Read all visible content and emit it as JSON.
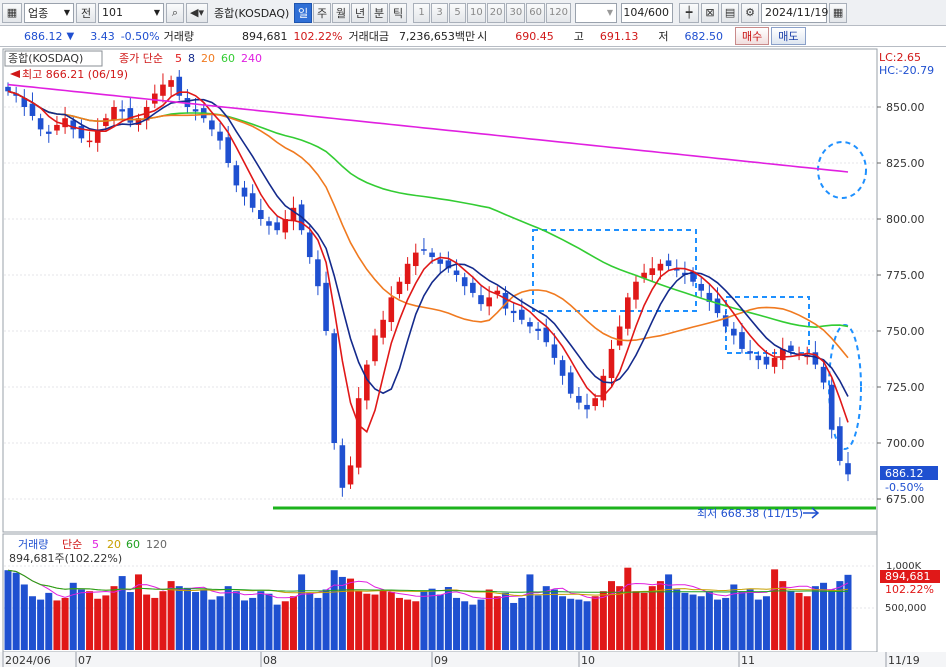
{
  "toolbar": {
    "market_select": "업종",
    "market_btn": "전",
    "code": "101",
    "name": "종합(KOSDAQ)",
    "periods": [
      "일",
      "주",
      "월",
      "년",
      "분",
      "틱"
    ],
    "numbers": [
      "1",
      "3",
      "5",
      "10",
      "20",
      "30",
      "60",
      "120"
    ],
    "count": "104/600",
    "date": "2024/11/19",
    "icons": [
      "search-icon",
      "speaker-icon",
      "candle-settings-icon",
      "chart-type-icon",
      "screen-icon",
      "gear-icon",
      "calendar-icon"
    ]
  },
  "quote": {
    "price": "686.12",
    "arrow": "▼",
    "change": "3.43",
    "change_pct": "-0.50%",
    "volume_label": "거래량",
    "volume": "894,681",
    "volume_pct": "102.22%",
    "amount_label": "거래대금",
    "amount": "7,236,653백만",
    "open_label": "시",
    "open": "690.45",
    "high_label": "고",
    "high": "691.13",
    "low_label": "저",
    "low": "682.50",
    "buy": "매수",
    "sell": "매도"
  },
  "chart": {
    "name_tag": "종합(KOSDAQ)",
    "ma_label": "종가 단순",
    "ma_periods": [
      "5",
      "8",
      "20",
      "60",
      "240"
    ],
    "high_note": "최고 866.21 (06/19)",
    "low_note": "최저 668.38 (11/15)",
    "lc": "LC:2.65",
    "hc": "HC:-20.79",
    "y_ticks": [
      "850.00",
      "825.00",
      "800.00",
      "775.00",
      "750.00",
      "725.00",
      "700.00",
      "675.00"
    ],
    "price_tag": "686.12",
    "price_tag_pct": "-0.50%",
    "x_labels": [
      "2024/06",
      "07",
      "08",
      "09",
      "10",
      "11",
      "11/19"
    ]
  },
  "volume_panel": {
    "label": "거래량",
    "ma_label": "단순",
    "ma_periods": [
      "5",
      "20",
      "60",
      "120"
    ],
    "current": "894,681주(102.22%)",
    "y_ticks": [
      "1,000K",
      "500,000"
    ],
    "tag": "894,681",
    "tag_pct": "102.22%"
  },
  "chart_data": {
    "type": "candlestick",
    "title": "종합(KOSDAQ)",
    "ylim": [
      660,
      880
    ],
    "close": [
      857,
      855,
      850,
      846,
      840,
      838,
      842,
      845,
      840,
      836,
      835,
      840,
      845,
      850,
      848,
      843,
      845,
      850,
      856,
      860,
      862,
      855,
      850,
      848,
      845,
      840,
      835,
      825,
      815,
      810,
      805,
      800,
      797,
      795,
      800,
      805,
      795,
      783,
      770,
      750,
      700,
      680,
      690,
      720,
      735,
      748,
      755,
      765,
      772,
      780,
      785,
      786,
      783,
      780,
      778,
      775,
      770,
      767,
      762,
      765,
      768,
      760,
      758,
      755,
      752,
      750,
      745,
      738,
      730,
      722,
      718,
      715,
      720,
      730,
      742,
      752,
      765,
      772,
      776,
      778,
      780,
      779,
      777,
      775,
      772,
      768,
      763,
      758,
      752,
      748,
      742,
      740,
      737,
      735,
      738,
      742,
      741,
      740,
      739,
      735,
      727,
      706,
      692,
      686
    ],
    "volume_k": [
      950,
      920,
      780,
      640,
      600,
      680,
      590,
      620,
      800,
      720,
      700,
      610,
      650,
      760,
      880,
      690,
      900,
      660,
      620,
      700,
      820,
      760,
      740,
      690,
      720,
      600,
      640,
      760,
      700,
      590,
      620,
      700,
      670,
      540,
      580,
      640,
      900,
      680,
      620,
      720,
      950,
      870,
      850,
      700,
      670,
      660,
      720,
      690,
      620,
      600,
      580,
      700,
      730,
      660,
      750,
      620,
      580,
      540,
      600,
      720,
      640,
      680,
      560,
      620,
      900,
      650,
      760,
      720,
      640,
      610,
      600,
      580,
      640,
      700,
      820,
      760,
      980,
      700,
      680,
      760,
      820,
      900,
      720,
      680,
      660,
      640,
      700,
      600,
      620,
      780,
      700,
      720,
      600,
      640,
      960,
      820,
      700,
      680,
      640,
      760,
      800,
      720,
      820,
      895
    ],
    "volume_ylim": [
      0,
      1150
    ],
    "ma_periods": [
      5,
      8,
      20,
      60,
      240
    ],
    "series_colors": {
      "up": "#e01818",
      "down": "#1f50d0",
      "ma5": "#e01818",
      "ma8": "#142a8c",
      "ma20": "#f07a20",
      "ma60": "#33cc33",
      "ma240": "#e020e0"
    },
    "support_line": 671
  }
}
